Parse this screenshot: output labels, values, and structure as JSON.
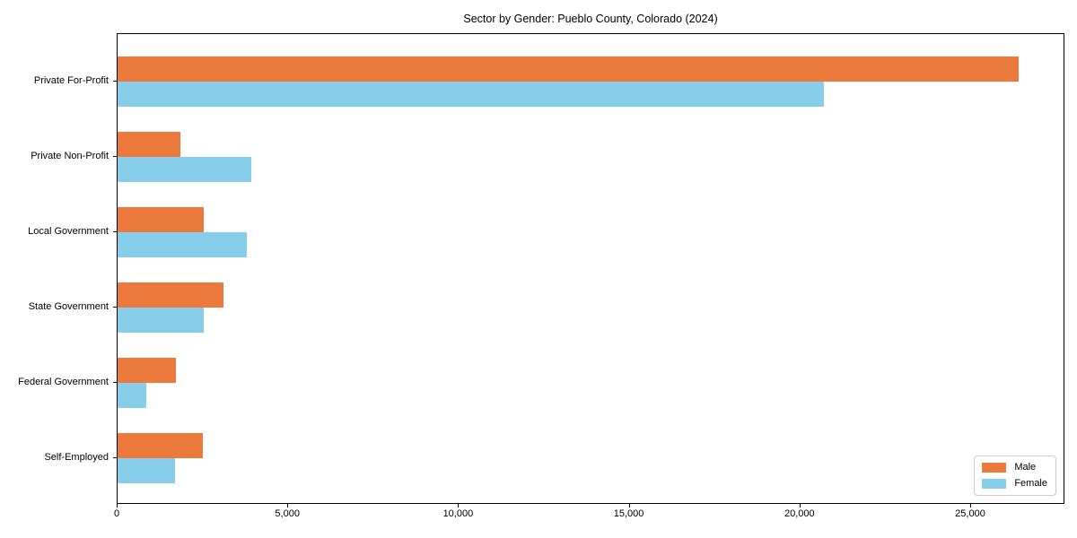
{
  "title": "Sector by Gender: Pueblo County, Colorado (2024)",
  "colors": {
    "male": "#ec7a3c",
    "female": "#87ceeb",
    "spine": "#000000",
    "background": "#ffffff",
    "legend_border": "#cccccc",
    "text": "#000000"
  },
  "chart_data": {
    "type": "bar",
    "orientation": "horizontal",
    "title": "Sector by Gender: Pueblo County, Colorado (2024)",
    "categories": [
      "Private For-Profit",
      "Private Non-Profit",
      "Local Government",
      "State Government",
      "Federal Government",
      "Self-Employed"
    ],
    "series": [
      {
        "name": "Male",
        "color": "#ec7a3c",
        "values": [
          26400,
          1830,
          2520,
          3110,
          1720,
          2510
        ]
      },
      {
        "name": "Female",
        "color": "#87ceeb",
        "values": [
          20700,
          3920,
          3780,
          2520,
          840,
          1670
        ]
      }
    ],
    "xlabel": "",
    "ylabel": "",
    "xlim": [
      0,
      27760
    ],
    "x_ticks": [
      0,
      5000,
      10000,
      15000,
      20000,
      25000
    ],
    "x_tick_labels": [
      "0",
      "5,000",
      "10,000",
      "15,000",
      "20,000",
      "25,000"
    ],
    "grid": false,
    "legend_position": "lower right"
  },
  "legend": {
    "items": [
      {
        "label": "Male"
      },
      {
        "label": "Female"
      }
    ]
  }
}
